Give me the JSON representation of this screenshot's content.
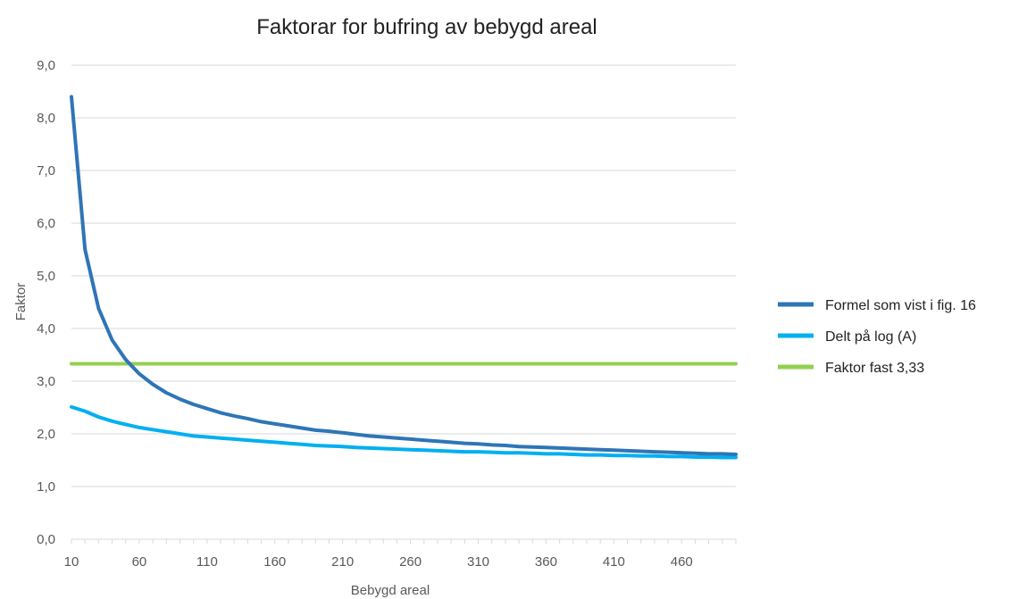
{
  "chart_data": {
    "type": "line",
    "title": "Faktorar for bufring av bebygd areal",
    "xlabel": "Bebygd areal",
    "ylabel": "Faktor",
    "xlim": [
      10,
      500
    ],
    "ylim": [
      0,
      9
    ],
    "x_ticks": [
      10,
      60,
      110,
      160,
      210,
      260,
      310,
      360,
      410,
      460
    ],
    "y_ticks": [
      "0,0",
      "1,0",
      "2,0",
      "3,0",
      "4,0",
      "5,0",
      "6,0",
      "7,0",
      "8,0",
      "9,0"
    ],
    "grid": true,
    "legend_position": "right",
    "x": [
      10,
      20,
      30,
      40,
      50,
      60,
      70,
      80,
      90,
      100,
      110,
      120,
      130,
      140,
      150,
      160,
      170,
      180,
      190,
      200,
      210,
      220,
      230,
      240,
      250,
      260,
      270,
      280,
      290,
      300,
      310,
      320,
      330,
      340,
      350,
      360,
      370,
      380,
      390,
      400,
      410,
      420,
      430,
      440,
      450,
      460,
      470,
      480,
      490,
      500
    ],
    "series": [
      {
        "name": "Formel som vist i fig. 16",
        "color": "#2e75b6",
        "values": [
          8.4,
          5.5,
          4.38,
          3.78,
          3.41,
          3.14,
          2.94,
          2.78,
          2.66,
          2.56,
          2.48,
          2.4,
          2.34,
          2.29,
          2.23,
          2.19,
          2.15,
          2.11,
          2.07,
          2.05,
          2.02,
          1.99,
          1.96,
          1.94,
          1.92,
          1.9,
          1.88,
          1.86,
          1.84,
          1.82,
          1.81,
          1.79,
          1.78,
          1.76,
          1.75,
          1.74,
          1.73,
          1.72,
          1.71,
          1.7,
          1.69,
          1.68,
          1.67,
          1.66,
          1.65,
          1.64,
          1.63,
          1.62,
          1.62,
          1.61
        ]
      },
      {
        "name": "Delt på log (A)",
        "color": "#00b0f0",
        "values": [
          2.51,
          2.43,
          2.32,
          2.24,
          2.18,
          2.12,
          2.08,
          2.04,
          2.0,
          1.96,
          1.94,
          1.92,
          1.9,
          1.88,
          1.86,
          1.84,
          1.82,
          1.8,
          1.78,
          1.77,
          1.76,
          1.74,
          1.73,
          1.72,
          1.71,
          1.7,
          1.69,
          1.68,
          1.67,
          1.66,
          1.66,
          1.65,
          1.64,
          1.64,
          1.63,
          1.62,
          1.62,
          1.61,
          1.6,
          1.6,
          1.59,
          1.59,
          1.58,
          1.58,
          1.57,
          1.57,
          1.56,
          1.56,
          1.55,
          1.55
        ]
      },
      {
        "name": "Faktor fast 3,33",
        "color": "#92d050",
        "values": [
          3.33,
          3.33,
          3.33,
          3.33,
          3.33,
          3.33,
          3.33,
          3.33,
          3.33,
          3.33,
          3.33,
          3.33,
          3.33,
          3.33,
          3.33,
          3.33,
          3.33,
          3.33,
          3.33,
          3.33,
          3.33,
          3.33,
          3.33,
          3.33,
          3.33,
          3.33,
          3.33,
          3.33,
          3.33,
          3.33,
          3.33,
          3.33,
          3.33,
          3.33,
          3.33,
          3.33,
          3.33,
          3.33,
          3.33,
          3.33,
          3.33,
          3.33,
          3.33,
          3.33,
          3.33,
          3.33,
          3.33,
          3.33,
          3.33,
          3.33
        ]
      }
    ]
  }
}
